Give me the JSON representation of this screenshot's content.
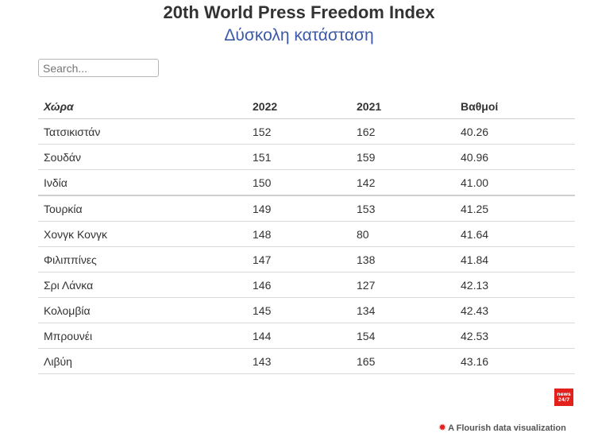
{
  "header": {
    "title": "20th World Press Freedom Index",
    "subtitle": "Δύσκολη κατάσταση"
  },
  "search": {
    "placeholder": "Search..."
  },
  "table": {
    "columns": [
      "Χώρα",
      "2022",
      "2021",
      "Βαθμοί"
    ],
    "rows": [
      [
        "Τατσικιστάν",
        "152",
        "162",
        "40.26"
      ],
      [
        "Σουδάν",
        "151",
        "159",
        "40.96"
      ],
      [
        "Ινδία",
        "150",
        "142",
        "41.00"
      ],
      [
        "Τουρκία",
        "149",
        "153",
        "41.25"
      ],
      [
        "Χονγκ Κονγκ",
        "148",
        "80",
        "41.64"
      ],
      [
        "Φιλιππίνες",
        "147",
        "138",
        "41.84"
      ],
      [
        "Σρι Λάνκα",
        "146",
        "127",
        "42.13"
      ],
      [
        "Κολομβία",
        "145",
        "134",
        "42.43"
      ],
      [
        "Μπρουνέι",
        "144",
        "154",
        "42.53"
      ],
      [
        "Λιβύη",
        "143",
        "165",
        "43.16"
      ]
    ]
  },
  "logo": {
    "line1": "news",
    "line2": "24/7",
    "color": "#e2201c"
  },
  "credit": {
    "text": "A Flourish data visualization",
    "icon": "flourish-star-icon"
  },
  "colors": {
    "subtitle": "#3d5aa8",
    "title": "#333333"
  }
}
